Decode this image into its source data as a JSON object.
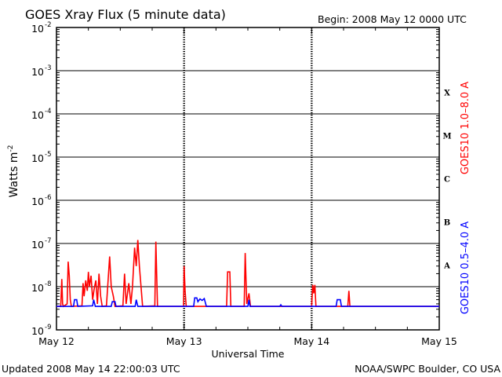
{
  "header": {
    "title": "GOES Xray Flux (5 minute data)",
    "begin": "Begin:  2008 May 12 0000 UTC"
  },
  "footer": {
    "updated": "Updated 2008 May 14 22:00:03 UTC",
    "credit": "NOAA/SWPC Boulder, CO USA"
  },
  "chart_data": {
    "type": "line",
    "title": "GOES Xray Flux (5 minute data)",
    "xlabel": "Universal Time",
    "ylabel": "Watts m⁻²",
    "yscale": "log",
    "ylim": [
      1e-09,
      0.01
    ],
    "xlim_hours": [
      0,
      72
    ],
    "x_ticks": [
      "May 12",
      "May 13",
      "May 14",
      "May 15"
    ],
    "y_ticks": [
      {
        "base": "10",
        "exp": "-9"
      },
      {
        "base": "10",
        "exp": "-8"
      },
      {
        "base": "10",
        "exp": "-7"
      },
      {
        "base": "10",
        "exp": "-6"
      },
      {
        "base": "10",
        "exp": "-5"
      },
      {
        "base": "10",
        "exp": "-4"
      },
      {
        "base": "10",
        "exp": "-3"
      },
      {
        "base": "10",
        "exp": "-2"
      }
    ],
    "flare_classes": [
      "X",
      "M",
      "C",
      "B",
      "A"
    ],
    "grid": "horizontal lines at decades",
    "series": [
      {
        "name": "GOES10 1.0–8.0 A",
        "color": "#ff0000",
        "points": [
          [
            0,
            3.5e-09
          ],
          [
            0.8,
            3.5e-09
          ],
          [
            1.0,
            1.5e-08
          ],
          [
            1.15,
            4e-09
          ],
          [
            1.3,
            3.5e-09
          ],
          [
            2.0,
            4e-09
          ],
          [
            2.2,
            3.8e-08
          ],
          [
            2.4,
            1.8e-08
          ],
          [
            2.6,
            5e-09
          ],
          [
            2.8,
            3.5e-09
          ],
          [
            4.8,
            3.6e-09
          ],
          [
            5.0,
            1.2e-08
          ],
          [
            5.2,
            6e-09
          ],
          [
            5.5,
            1.4e-08
          ],
          [
            5.8,
            8e-09
          ],
          [
            6.0,
            2.2e-08
          ],
          [
            6.2,
            1e-08
          ],
          [
            6.5,
            1.8e-08
          ],
          [
            6.8,
            5e-09
          ],
          [
            7.1,
            9e-09
          ],
          [
            7.4,
            1.4e-08
          ],
          [
            7.7,
            4e-09
          ],
          [
            8.0,
            2e-08
          ],
          [
            8.3,
            6e-09
          ],
          [
            8.6,
            3.5e-09
          ],
          [
            9.4,
            3.6e-09
          ],
          [
            9.7,
            1.3e-08
          ],
          [
            10.0,
            5e-08
          ],
          [
            10.3,
            1e-08
          ],
          [
            10.7,
            6e-09
          ],
          [
            11.0,
            3.5e-09
          ],
          [
            12.5,
            3.6e-09
          ],
          [
            12.8,
            2e-08
          ],
          [
            13.1,
            4e-09
          ],
          [
            13.6,
            1.2e-08
          ],
          [
            14.0,
            4e-09
          ],
          [
            14.3,
            1e-08
          ],
          [
            14.7,
            8e-08
          ],
          [
            15.0,
            3e-08
          ],
          [
            15.3,
            1.2e-07
          ],
          [
            15.6,
            3e-08
          ],
          [
            15.9,
            1e-08
          ],
          [
            16.2,
            3.5e-09
          ],
          [
            18.5,
            3.6e-09
          ],
          [
            18.7,
            1.1e-07
          ],
          [
            19.0,
            3.5e-09
          ],
          [
            23.9,
            3.5e-09
          ],
          [
            24.0,
            3e-08
          ],
          [
            24.2,
            8e-09
          ],
          [
            24.4,
            3.5e-09
          ],
          [
            32.0,
            3.5e-09
          ],
          [
            32.2,
            2.2e-08
          ],
          [
            32.6,
            2.2e-08
          ],
          [
            32.8,
            3.5e-09
          ],
          [
            35.3,
            3.5e-09
          ],
          [
            35.5,
            6e-08
          ],
          [
            35.8,
            4e-09
          ],
          [
            36.2,
            7e-09
          ],
          [
            36.5,
            3.5e-09
          ],
          [
            48.0,
            3.5e-09
          ],
          [
            48.2,
            1.1e-08
          ],
          [
            48.4,
            7e-09
          ],
          [
            48.6,
            1.1e-08
          ],
          [
            48.8,
            3.5e-09
          ],
          [
            54.8,
            3.5e-09
          ],
          [
            55.0,
            8e-09
          ],
          [
            55.2,
            3.5e-09
          ],
          [
            72,
            3.5e-09
          ]
        ]
      },
      {
        "name": "GOES10 0.5–4.0 A",
        "color": "#0000ff",
        "points": [
          [
            0,
            3.5e-09
          ],
          [
            3.2,
            3.5e-09
          ],
          [
            3.4,
            5e-09
          ],
          [
            3.8,
            5e-09
          ],
          [
            4.0,
            3.5e-09
          ],
          [
            6.8,
            3.6e-09
          ],
          [
            7.0,
            5e-09
          ],
          [
            7.3,
            3.5e-09
          ],
          [
            10.3,
            3.5e-09
          ],
          [
            10.5,
            4.5e-09
          ],
          [
            11.0,
            4.5e-09
          ],
          [
            11.2,
            3.5e-09
          ],
          [
            14.8,
            3.5e-09
          ],
          [
            15.0,
            5e-09
          ],
          [
            15.3,
            3.5e-09
          ],
          [
            24.0,
            3.5e-09
          ],
          [
            25.8,
            3.5e-09
          ],
          [
            26.0,
            5.5e-09
          ],
          [
            26.4,
            5.5e-09
          ],
          [
            26.6,
            4.5e-09
          ],
          [
            27.0,
            5.2e-09
          ],
          [
            27.4,
            4.8e-09
          ],
          [
            27.8,
            5.3e-09
          ],
          [
            28.2,
            3.5e-09
          ],
          [
            36.0,
            3.5e-09
          ],
          [
            36.2,
            5e-09
          ],
          [
            36.4,
            3.5e-09
          ],
          [
            42.0,
            3.5e-09
          ],
          [
            42.2,
            3.8e-09
          ],
          [
            42.4,
            3.5e-09
          ],
          [
            52.6,
            3.5e-09
          ],
          [
            52.8,
            5e-09
          ],
          [
            53.4,
            5e-09
          ],
          [
            53.6,
            3.5e-09
          ],
          [
            72,
            3.5e-09
          ]
        ]
      }
    ]
  }
}
